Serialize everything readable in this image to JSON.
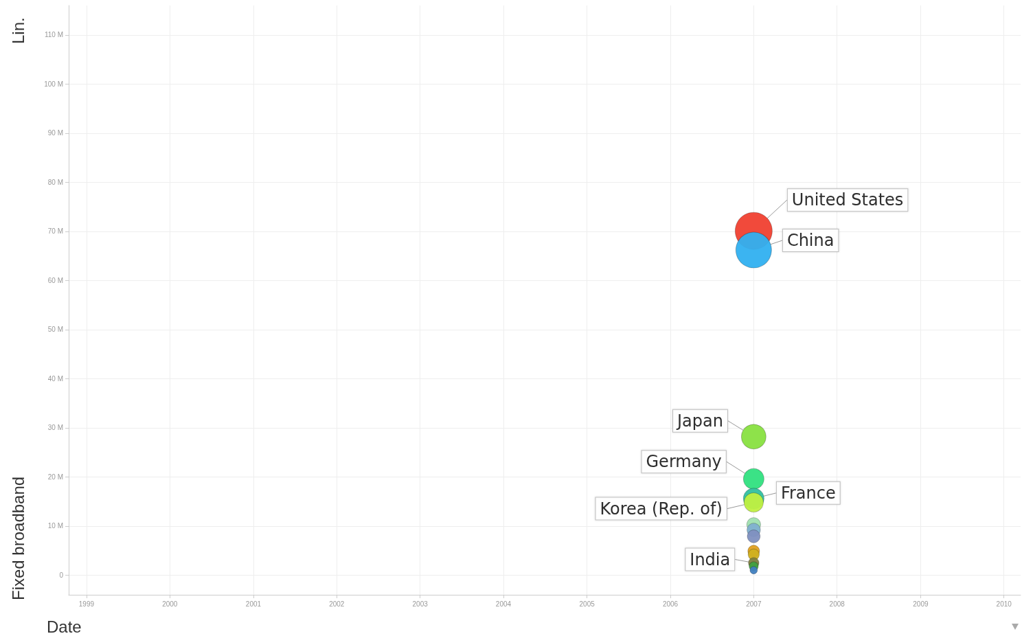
{
  "chart_data": {
    "type": "bubble",
    "xlabel": "Date",
    "ylabel": "Fixed broadband",
    "annotations": [
      "Lin."
    ],
    "xlim": [
      "1998-10-15",
      "2010-03-15"
    ],
    "xticks": [
      "1999",
      "2000",
      "2001",
      "2002",
      "2003",
      "2004",
      "2005",
      "2006",
      "2007",
      "2008",
      "2009",
      "2010"
    ],
    "ylim": [
      -4,
      116
    ],
    "yticks": [
      0,
      {
        "value": 10,
        "label": "10 M"
      },
      {
        "value": 20,
        "label": "20 M"
      },
      {
        "value": 30,
        "label": "30 M"
      },
      {
        "value": 40,
        "label": "40 M"
      },
      {
        "value": 50,
        "label": "50 M"
      },
      {
        "value": 60,
        "label": "60 M"
      },
      {
        "value": 70,
        "label": "70 M"
      },
      {
        "value": 80,
        "label": "80 M"
      },
      {
        "value": 90,
        "label": "90 M"
      },
      {
        "value": 100,
        "label": "100 M"
      },
      {
        "value": 110,
        "label": "110 M"
      }
    ],
    "grid": true,
    "marker": "circle",
    "legend": false,
    "series": [
      {
        "name": "United States",
        "color": "#f04030",
        "x": [
          "2007"
        ],
        "values": [
          70.1
        ],
        "sizes": [
          1
        ]
      },
      {
        "name": "China",
        "color": "#30b0f0",
        "x": [
          "2007"
        ],
        "values": [
          66.2
        ],
        "sizes": [
          0.93
        ]
      },
      {
        "name": "Japan",
        "color": "#88e040",
        "x": [
          "2007"
        ],
        "values": [
          28.2
        ],
        "sizes": [
          0.44
        ]
      },
      {
        "name": "Germany",
        "color": "#30e080",
        "x": [
          "2007"
        ],
        "values": [
          19.6
        ],
        "sizes": [
          0.31
        ]
      },
      {
        "name": "France",
        "color": "#30c0a0",
        "x": [
          "2007"
        ],
        "values": [
          15.6
        ],
        "sizes": [
          0.31
        ]
      },
      {
        "name": "Korea (Rep. of)",
        "color": "#c0f040",
        "x": [
          "2007"
        ],
        "values": [
          14.8
        ],
        "sizes": [
          0.27
        ]
      },
      {
        "color": "#a0e0b0",
        "x": [
          "2007"
        ],
        "values": [
          10.3
        ],
        "sizes": [
          0.14
        ]
      },
      {
        "color": "#80b0d0",
        "x": [
          "2007"
        ],
        "values": [
          9.2
        ],
        "sizes": [
          0.13
        ]
      },
      {
        "color": "#8090c0",
        "x": [
          "2007"
        ],
        "values": [
          7.9
        ],
        "sizes": [
          0.12
        ]
      },
      {
        "color": "#e0a020",
        "x": [
          "2007"
        ],
        "values": [
          4.9
        ],
        "sizes": [
          0.1
        ]
      },
      {
        "color": "#d0b020",
        "x": [
          "2007"
        ],
        "values": [
          4.2
        ],
        "sizes": [
          0.09
        ]
      },
      {
        "name": "India",
        "color": "#808040",
        "x": [
          "2007"
        ],
        "values": [
          2.5
        ],
        "sizes": [
          0.08
        ]
      },
      {
        "color": "#40a040",
        "x": [
          "2007"
        ],
        "values": [
          1.8
        ],
        "sizes": [
          0.06
        ]
      },
      {
        "color": "#4080c0",
        "x": [
          "2007"
        ],
        "values": [
          1.0
        ],
        "sizes": [
          0.04
        ]
      }
    ]
  }
}
